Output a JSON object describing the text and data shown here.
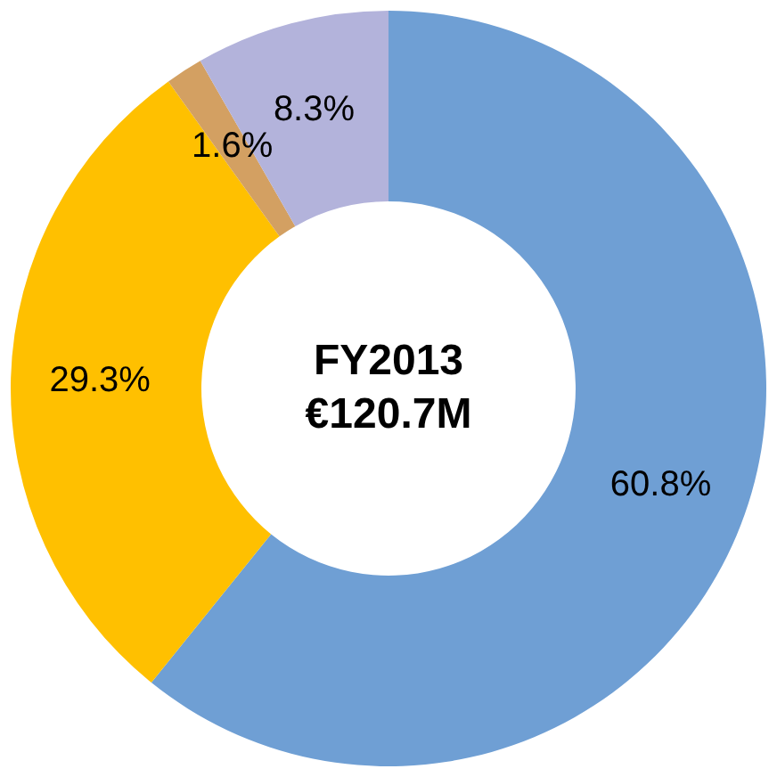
{
  "chart_data": {
    "type": "donut",
    "categories": [
      null,
      null,
      null,
      null
    ],
    "values": [
      60.8,
      29.3,
      1.6,
      8.3
    ],
    "colors": [
      "#6f9fd4",
      "#ffc000",
      "#d3a062",
      "#b3b3db"
    ],
    "value_labels": [
      "60.8%",
      "29.3%",
      "1.6%",
      "8.3%"
    ],
    "annotations": [
      "FY2013",
      "€120.7M"
    ]
  }
}
